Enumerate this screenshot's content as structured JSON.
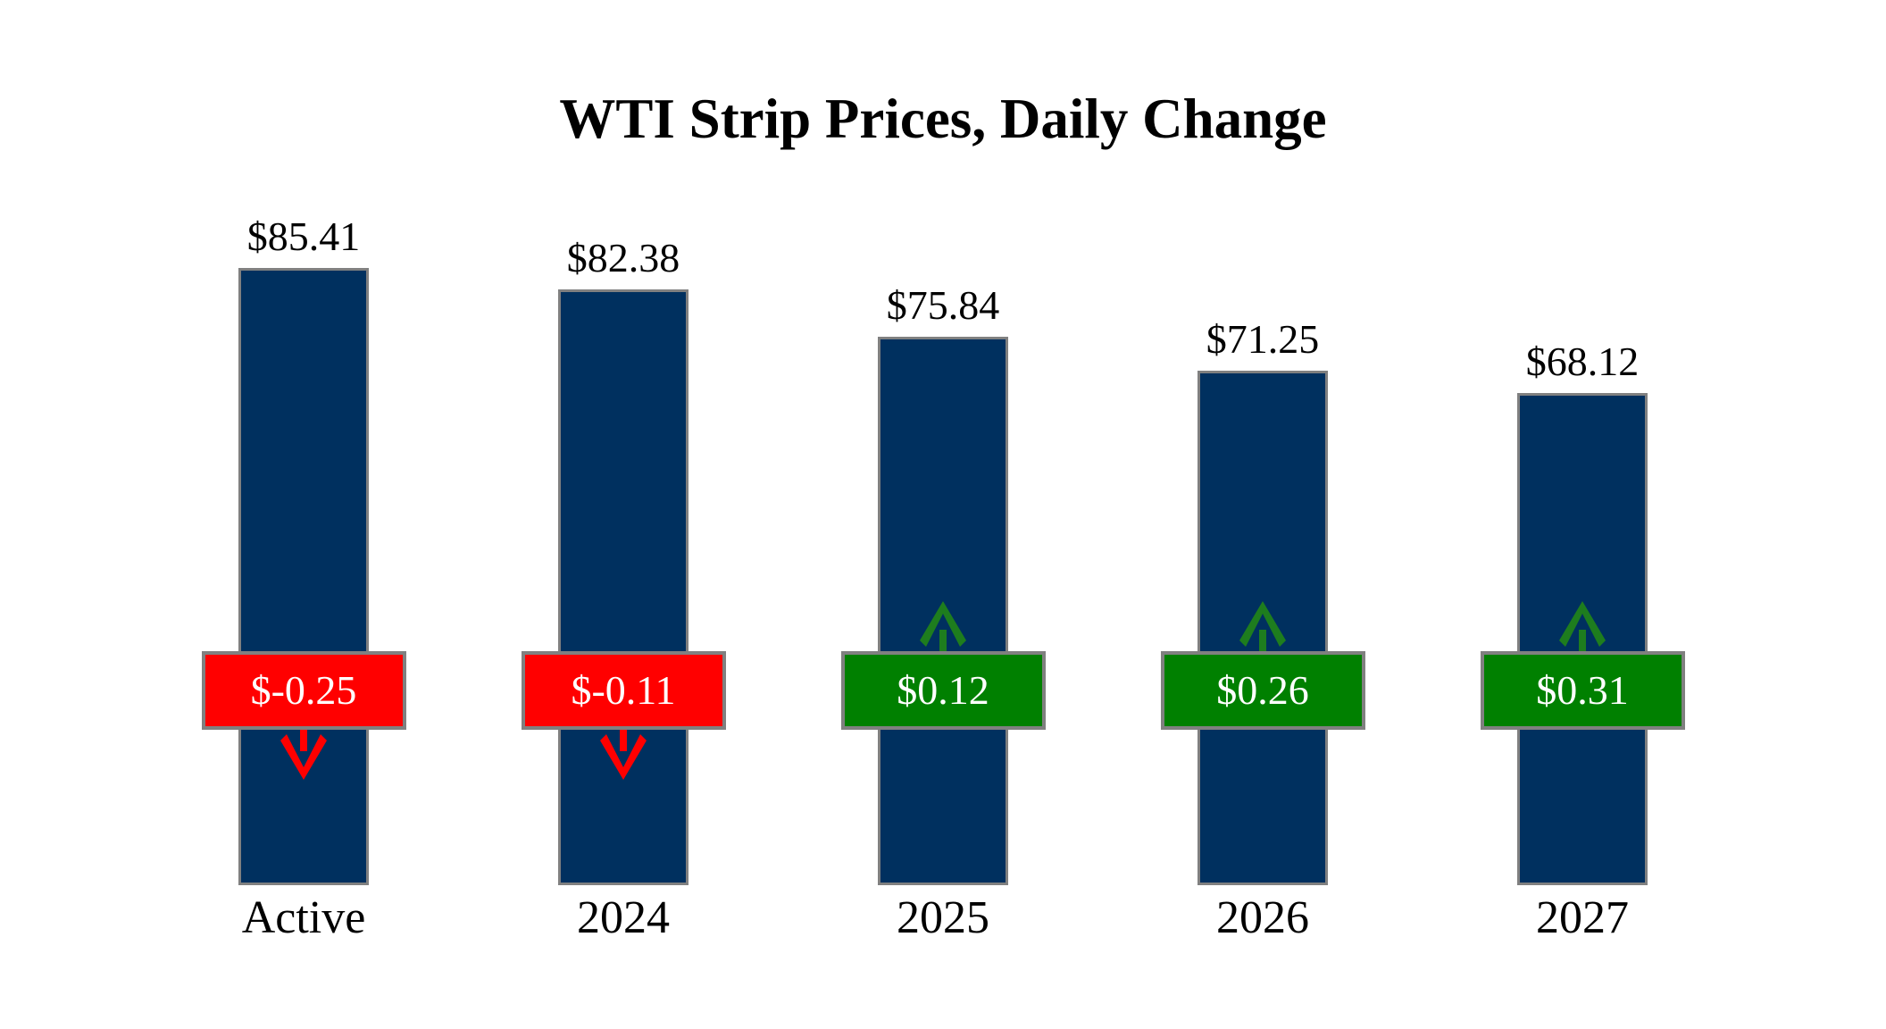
{
  "chart_data": {
    "type": "bar",
    "title": "WTI Strip Prices, Daily Change",
    "categories": [
      "Active",
      "2024",
      "2025",
      "2026",
      "2027"
    ],
    "series": [
      {
        "name": "WTI strip price",
        "values": [
          85.41,
          82.38,
          75.84,
          71.25,
          68.12
        ],
        "labels": [
          "$85.41",
          "$82.38",
          "$75.84",
          "$71.25",
          "$68.12"
        ]
      },
      {
        "name": "Daily change",
        "values": [
          -0.25,
          -0.11,
          0.12,
          0.26,
          0.31
        ],
        "labels": [
          "$-0.25",
          "$-0.11",
          "$0.12",
          "$0.26",
          "$0.31"
        ],
        "directions": [
          "down",
          "down",
          "up",
          "up",
          "up"
        ]
      }
    ],
    "grid": false,
    "axes_shown": false,
    "legend": "none"
  },
  "colors": {
    "background": "#FFFFFF",
    "bar_fill": "#00305F",
    "border_gray": "#808080",
    "negative_box": "#FF0000",
    "positive_box": "#008000",
    "negative_arrow": "#FF0000",
    "positive_arrow": "#1E7D1E",
    "title_text": "#000000",
    "label_text": "#000000",
    "box_text": "#FFFFFF"
  }
}
